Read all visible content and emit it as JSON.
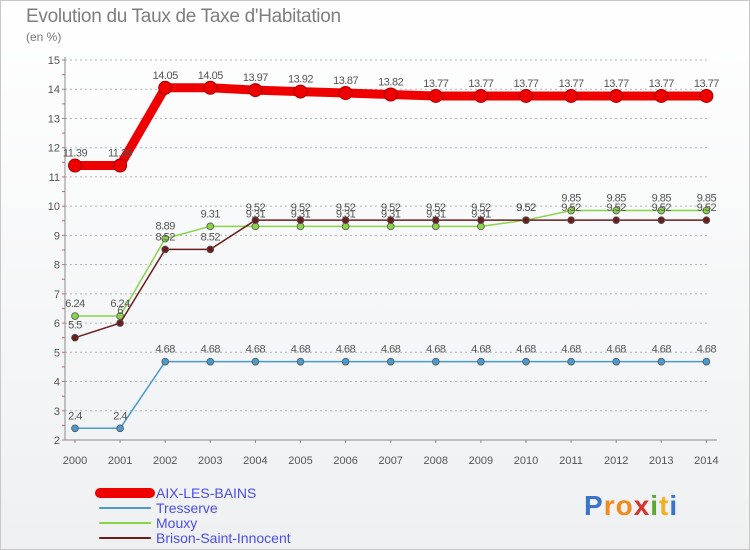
{
  "title": "Evolution du Taux de Taxe d'Habitation",
  "unit": "(en %)",
  "logo": "Proxiti",
  "chart_data": {
    "type": "line",
    "title": "Evolution du Taux de Taxe d'Habitation",
    "ylabel": "(en %)",
    "xlabel": "",
    "ylim": [
      2,
      15
    ],
    "x": [
      "2000",
      "2001",
      "2002",
      "2003",
      "2004",
      "2005",
      "2006",
      "2007",
      "2008",
      "2009",
      "2010",
      "2011",
      "2012",
      "2013",
      "2014"
    ],
    "y_ticks": [
      "2",
      "3",
      "4",
      "5",
      "6",
      "7",
      "8",
      "9",
      "10",
      "11",
      "12",
      "13",
      "14",
      "15"
    ],
    "series": [
      {
        "name": "AIX-LES-BAINS",
        "color": "#ee0000",
        "legend_color": "#4d4de8",
        "values": [
          11.39,
          11.39,
          14.05,
          14.05,
          13.97,
          13.92,
          13.87,
          13.82,
          13.77,
          13.77,
          13.77,
          13.77,
          13.77,
          13.77,
          13.77
        ],
        "labels": [
          "11.39",
          "11.39",
          "14.05",
          "14.05",
          "13.97",
          "13.92",
          "13.87",
          "13.82",
          "13.77",
          "13.77",
          "13.77",
          "13.77",
          "13.77",
          "13.77",
          "13.77"
        ]
      },
      {
        "name": "Tresserve",
        "color": "#4a9acd",
        "legend_color": "#4d4de8",
        "values": [
          2.4,
          2.4,
          4.68,
          4.68,
          4.68,
          4.68,
          4.68,
          4.68,
          4.68,
          4.68,
          4.68,
          4.68,
          4.68,
          4.68,
          4.68
        ],
        "labels": [
          "2.4",
          "2.4",
          "4.68",
          "4.68",
          "4.68",
          "4.68",
          "4.68",
          "4.68",
          "4.68",
          "4.68",
          "4.68",
          "4.68",
          "4.68",
          "4.68",
          "4.68"
        ]
      },
      {
        "name": "Mouxy",
        "color": "#8bd44a",
        "legend_color": "#4d4de8",
        "values": [
          6.24,
          6.24,
          8.89,
          9.31,
          9.31,
          9.31,
          9.31,
          9.31,
          9.31,
          9.31,
          9.52,
          9.85,
          9.85,
          9.85,
          9.85
        ],
        "labels": [
          "6.24",
          "6.24",
          "8.89",
          "9.31",
          "9.31",
          "9.31",
          "9.31",
          "9.31",
          "9.31",
          "9.31",
          "9.52",
          "9.85",
          "9.85",
          "9.85",
          "9.85"
        ]
      },
      {
        "name": "Brison-Saint-Innocent",
        "color": "#6b1d1d",
        "legend_color": "#4d4de8",
        "values": [
          5.5,
          6,
          8.52,
          8.52,
          9.52,
          9.52,
          9.52,
          9.52,
          9.52,
          9.52,
          9.52,
          9.52,
          9.52,
          9.52,
          9.52
        ],
        "labels": [
          "5.5",
          "6",
          "8.52",
          "8.52",
          "9.52",
          "9.52",
          "9.52",
          "9.52",
          "9.52",
          "9.52",
          "9.52",
          "9.52",
          "9.52",
          "9.52",
          "9.52"
        ]
      }
    ]
  }
}
